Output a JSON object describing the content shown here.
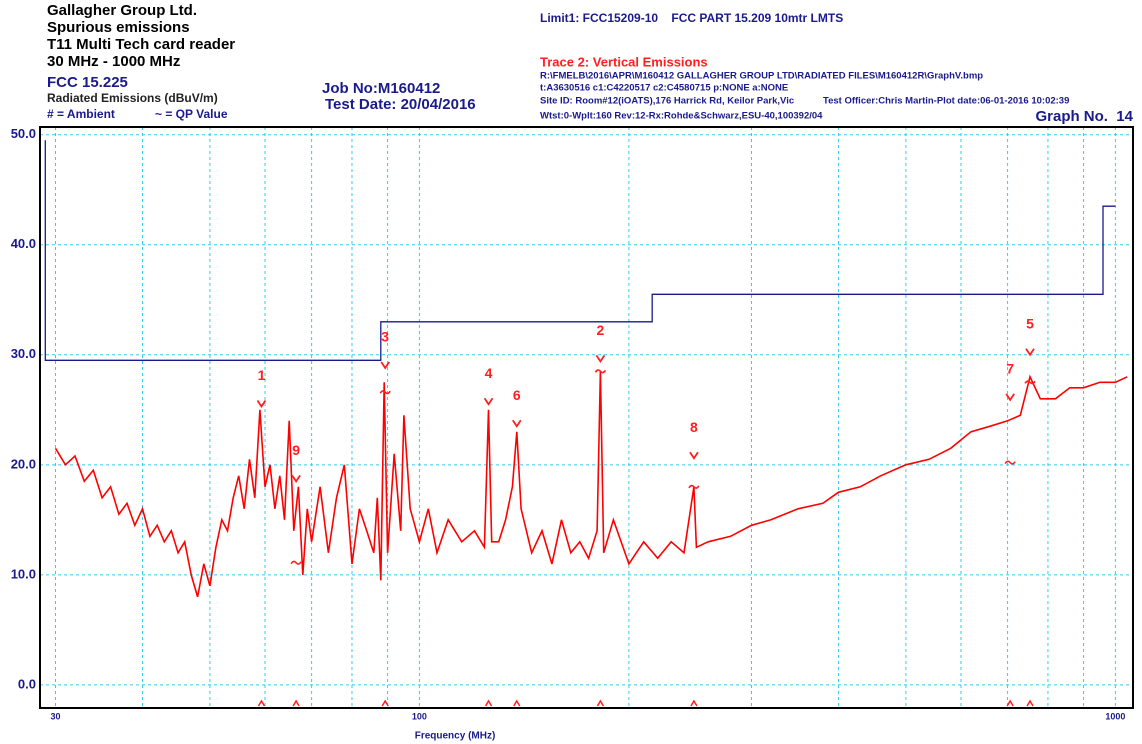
{
  "header": {
    "company": "Gallagher Group Ltd.",
    "test": "Spurious emissions",
    "device": "T11 Multi Tech card reader",
    "range": "30 MHz - 1000 MHz",
    "standard": "FCC 15.225",
    "units": "Radiated Emissions (dBuV/m)",
    "ambient_key": "# = Ambient",
    "qp_key": "~ = QP Value",
    "job": "Job No:M160412",
    "date": "Test Date: 20/04/2016",
    "limit": "Limit1: FCC15209-10    FCC PART 15.209 10mtr LMTS",
    "trace": "Trace 2: Vertical Emissions",
    "file": "R:\\FMELB\\2016\\APR\\M160412 GALLAGHER GROUP LTD\\RADIATED FILES\\M160412R\\GraphV.bmp",
    "setup": "t:A3630516 c1:C4220517  c2:C4580715 p:NONE a:NONE",
    "site": "Site ID: Room#12(iOATS),176 Harrick Rd, Keilor Park,Vic",
    "officer": "Test Officer:Chris Martin-Plot date:06-01-2016 10:02:39",
    "receiver": "Wtst:0-Wplt:160 Rev:12-Rx:Rohde&Schwarz,ESU-40,100392/04",
    "graph": "Graph No.  14"
  },
  "chart_data": {
    "type": "line",
    "x_label": "Frequency (MHz)",
    "xscale": "log",
    "xlim": [
      28.5,
      1060
    ],
    "ylim": [
      -2.1,
      50.7
    ],
    "xticks": [
      30,
      100,
      1000
    ],
    "xgrid": [
      40,
      50,
      60,
      70,
      80,
      90,
      200,
      300,
      400,
      500,
      600,
      700,
      800,
      900
    ],
    "yticks": [
      {
        "value": 0,
        "label": "0.0"
      },
      {
        "value": 10,
        "label": "10.0"
      },
      {
        "value": 20,
        "label": "20.0"
      },
      {
        "value": 30,
        "label": "30.0"
      },
      {
        "value": 40,
        "label": "40.0"
      },
      {
        "value": 50,
        "label": "50.0"
      }
    ],
    "grid": true,
    "series": [
      {
        "color": "#1a1a8c",
        "x": [
          29,
          29,
          88,
          88,
          216,
          216,
          960,
          960,
          1000
        ],
        "values": [
          49.5,
          29.5,
          29.5,
          33,
          33,
          35.5,
          35.5,
          43.5,
          43.5
        ]
      },
      {
        "color": "#ff0000",
        "x": [
          30,
          31,
          32,
          33,
          34,
          35,
          36,
          37,
          38,
          39,
          40,
          41,
          42,
          43,
          44,
          45,
          46,
          47,
          48,
          49,
          50,
          51,
          52,
          53,
          54,
          55,
          56,
          57,
          58,
          59,
          60,
          61,
          62,
          63,
          64,
          65,
          66,
          67,
          68,
          69,
          70,
          72,
          74,
          76,
          78,
          80,
          82,
          84,
          86,
          87,
          88,
          89,
          90,
          92,
          94,
          95,
          97,
          100,
          103,
          106,
          110,
          115,
          120,
          124,
          125.7,
          127,
          130,
          133,
          136,
          138,
          140,
          145,
          150,
          155,
          160,
          165,
          170,
          175,
          180,
          182,
          184,
          190,
          200,
          210,
          220,
          230,
          240,
          248,
          250,
          260,
          280,
          300,
          320,
          350,
          380,
          400,
          430,
          460,
          500,
          540,
          580,
          620,
          660,
          700,
          730,
          754,
          780,
          820,
          860,
          900,
          950,
          1000,
          1040
        ],
        "values": [
          21.5,
          20,
          20.8,
          18.5,
          19.5,
          17,
          18,
          15.5,
          16.5,
          14.5,
          16,
          13.5,
          14.5,
          13,
          14,
          12,
          13,
          10,
          8,
          11,
          9,
          12.5,
          15,
          14,
          17,
          19,
          16,
          20.5,
          17,
          25,
          18,
          20,
          16,
          19,
          15,
          24,
          14,
          18,
          10,
          16,
          13,
          18,
          12,
          17,
          20,
          11,
          16,
          14,
          12,
          17,
          9.5,
          27.5,
          12,
          21,
          14,
          24.5,
          16,
          13,
          16,
          12,
          15,
          13,
          14,
          12.5,
          25,
          13,
          13,
          15,
          18,
          23,
          16,
          12,
          14,
          11,
          15,
          12,
          13,
          11.5,
          14,
          28.5,
          12,
          15,
          11,
          13,
          11.5,
          13,
          12,
          18,
          12.5,
          13,
          13.5,
          14.5,
          15,
          16,
          16.5,
          17.5,
          18,
          19,
          20,
          20.5,
          21.5,
          23,
          23.5,
          24,
          24.5,
          28,
          26,
          26,
          27,
          27,
          27.5,
          27.5,
          28
        ]
      }
    ],
    "markers": [
      {
        "label": "1",
        "x": 59.3,
        "peak": 25.3,
        "qp": null
      },
      {
        "label": "2",
        "x": 182,
        "peak": 29.4,
        "qp": 28.5
      },
      {
        "label": "3",
        "x": 89.3,
        "peak": 28.8,
        "qp": 26.6
      },
      {
        "label": "4",
        "x": 125.7,
        "peak": 25.5,
        "qp": null
      },
      {
        "label": "5",
        "x": 754,
        "peak": 30,
        "qp": 27.5
      },
      {
        "label": "6",
        "x": 138,
        "peak": 23.5,
        "qp": null
      },
      {
        "label": "7",
        "x": 706,
        "peak": 25.9,
        "qp": 20.2
      },
      {
        "label": "8",
        "x": 248,
        "peak": 20.6,
        "qp": 18
      },
      {
        "label": "9",
        "x": 66.5,
        "peak": 18.5,
        "qp": 11.1
      }
    ]
  }
}
